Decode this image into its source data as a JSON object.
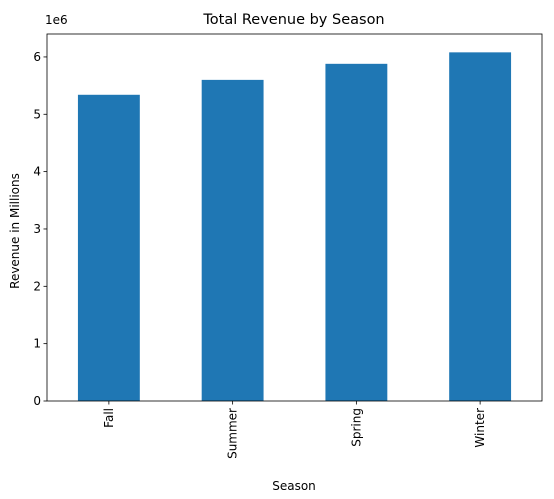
{
  "chart_data": {
    "type": "bar",
    "title": "Total Revenue by Season",
    "xlabel": "Season",
    "ylabel": "Revenue in Millions",
    "y_offset_label": "1e6",
    "categories": [
      "Fall",
      "Summer",
      "Spring",
      "Winter"
    ],
    "values": [
      5340000,
      5600000,
      5880000,
      6080000
    ],
    "ylim": [
      0,
      6400000
    ],
    "yticks": [
      0,
      1000000,
      2000000,
      3000000,
      4000000,
      5000000,
      6000000
    ],
    "ytick_labels": [
      "0",
      "1",
      "2",
      "3",
      "4",
      "5",
      "6"
    ],
    "grid": false,
    "legend": "none",
    "bar_color": "#1f77b4"
  }
}
